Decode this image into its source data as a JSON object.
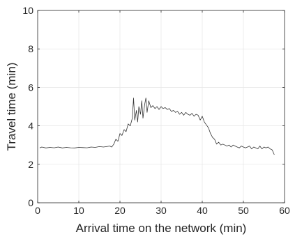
{
  "chart_data": {
    "type": "line",
    "title": "",
    "xlabel": "Arrival time on the network (min)",
    "ylabel": "Travel time (min)",
    "xlim": [
      0,
      60
    ],
    "ylim": [
      0,
      10
    ],
    "xticks": [
      0,
      10,
      20,
      30,
      40,
      50,
      60
    ],
    "yticks": [
      0,
      2,
      4,
      6,
      8,
      10
    ],
    "xtick_labels": [
      "0",
      "10",
      "20",
      "30",
      "40",
      "50",
      "60"
    ],
    "ytick_labels": [
      "0",
      "2",
      "4",
      "6",
      "8",
      "10"
    ],
    "grid": true,
    "legend": "none",
    "series": [
      {
        "color": "#333333",
        "x": [
          0.5,
          1,
          2,
          3,
          4,
          5,
          6,
          7,
          8,
          9,
          10,
          11,
          12,
          13,
          14,
          15,
          16,
          17,
          17.5,
          18,
          18.5,
          19,
          19.5,
          20,
          20.5,
          21,
          21.5,
          22,
          22.5,
          23,
          23.3,
          23.6,
          24,
          24.3,
          24.6,
          25,
          25.3,
          25.6,
          26,
          26.3,
          26.6,
          27,
          27.5,
          28,
          28.5,
          29,
          29.5,
          30,
          30.5,
          31,
          31.5,
          32,
          32.5,
          33,
          33.5,
          34,
          34.5,
          35,
          35.5,
          36,
          36.5,
          37,
          37.5,
          38,
          38.5,
          39,
          39.5,
          40,
          40.5,
          41,
          41.5,
          42,
          42.5,
          43,
          43.5,
          44,
          44.5,
          45,
          45.5,
          46,
          46.5,
          47,
          47.5,
          48,
          48.5,
          49,
          49.5,
          50,
          50.5,
          51,
          51.5,
          52,
          52.5,
          53,
          53.5,
          54,
          54.5,
          55,
          55.5,
          56,
          56.5,
          57,
          57.5
        ],
        "y": [
          2.85,
          2.9,
          2.85,
          2.88,
          2.86,
          2.9,
          2.85,
          2.88,
          2.86,
          2.85,
          2.88,
          2.87,
          2.86,
          2.9,
          2.88,
          2.92,
          2.9,
          2.93,
          2.95,
          2.9,
          3.05,
          3.3,
          3.2,
          3.6,
          3.5,
          3.8,
          3.7,
          4.1,
          4.0,
          4.4,
          5.45,
          4.3,
          4.8,
          4.2,
          5.0,
          4.6,
          5.3,
          4.4,
          5.1,
          5.45,
          4.7,
          5.3,
          4.95,
          5.05,
          4.9,
          5.0,
          4.85,
          5.0,
          4.9,
          4.95,
          4.85,
          4.9,
          4.75,
          4.8,
          4.7,
          4.75,
          4.6,
          4.7,
          4.55,
          4.7,
          4.6,
          4.55,
          4.65,
          4.5,
          4.6,
          4.55,
          4.3,
          4.5,
          4.2,
          4.05,
          3.9,
          3.6,
          3.4,
          3.3,
          3.05,
          3.15,
          3.0,
          3.05,
          3.0,
          2.95,
          3.0,
          2.9,
          3.0,
          2.95,
          2.9,
          2.85,
          2.95,
          2.9,
          2.85,
          2.9,
          2.95,
          2.8,
          2.9,
          2.85,
          2.8,
          2.95,
          2.8,
          2.9,
          2.85,
          2.9,
          2.8,
          2.75,
          2.5
        ]
      }
    ]
  }
}
